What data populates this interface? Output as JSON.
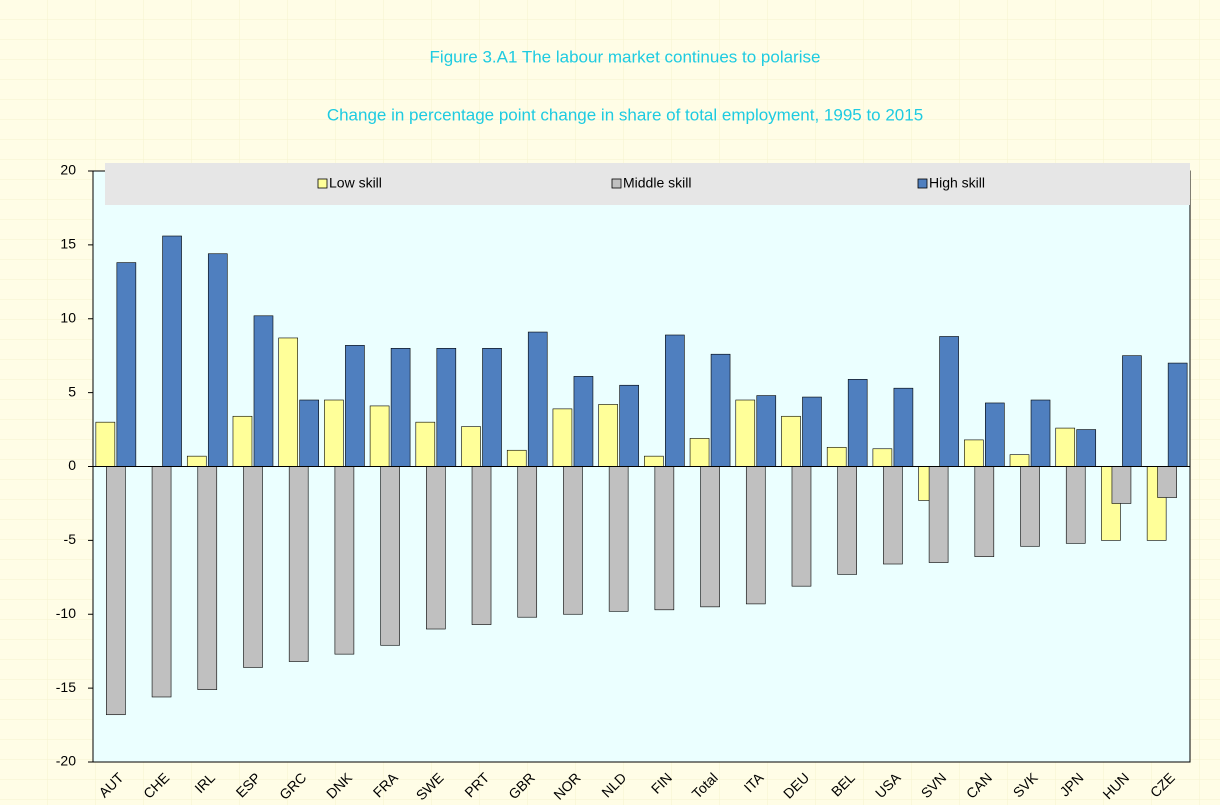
{
  "chart_data": {
    "type": "bar",
    "title": "Figure 3.A1 The labour market continues to polarise",
    "subtitle": "Change in percentage point change in share of total employment, 1995 to 2015",
    "categories": [
      "AUT",
      "CHE",
      "IRL",
      "ESP",
      "GRC",
      "DNK",
      "FRA",
      "SWE",
      "PRT",
      "GBR",
      "NOR",
      "NLD",
      "FIN",
      "Total",
      "ITA",
      "DEU",
      "BEL",
      "USA",
      "SVN",
      "CAN",
      "SVK",
      "JPN",
      "HUN",
      "CZE"
    ],
    "series": [
      {
        "name": "Low skill",
        "color": "#ffff99",
        "values": [
          3.0,
          0,
          0.7,
          3.4,
          8.7,
          4.5,
          4.1,
          3.0,
          2.7,
          1.1,
          3.9,
          4.2,
          0.7,
          1.9,
          4.5,
          3.4,
          1.3,
          1.2,
          -2.3,
          1.8,
          0.8,
          2.6,
          -5.0,
          -5.0
        ]
      },
      {
        "name": "Middle skill",
        "color": "#c0c0c0",
        "values": [
          -16.8,
          -15.6,
          -15.1,
          -13.6,
          -13.2,
          -12.7,
          -12.1,
          -11.0,
          -10.7,
          -10.2,
          -10.0,
          -9.8,
          -9.7,
          -9.5,
          -9.3,
          -8.1,
          -7.3,
          -6.6,
          -6.5,
          -6.1,
          -5.4,
          -5.2,
          -2.5,
          -2.1
        ]
      },
      {
        "name": "High skill",
        "color": "#4f7fbf",
        "values": [
          13.8,
          15.6,
          14.4,
          10.2,
          4.5,
          8.2,
          8.0,
          8.0,
          8.0,
          9.1,
          6.1,
          5.5,
          8.9,
          7.6,
          4.8,
          4.7,
          5.9,
          5.3,
          8.8,
          4.3,
          4.5,
          2.5,
          7.5,
          7.0
        ]
      }
    ],
    "ylim": [
      -20,
      20
    ],
    "yticks": [
      -20,
      -15,
      -10,
      -5,
      0,
      5,
      10,
      15,
      20
    ],
    "legend": "top"
  }
}
